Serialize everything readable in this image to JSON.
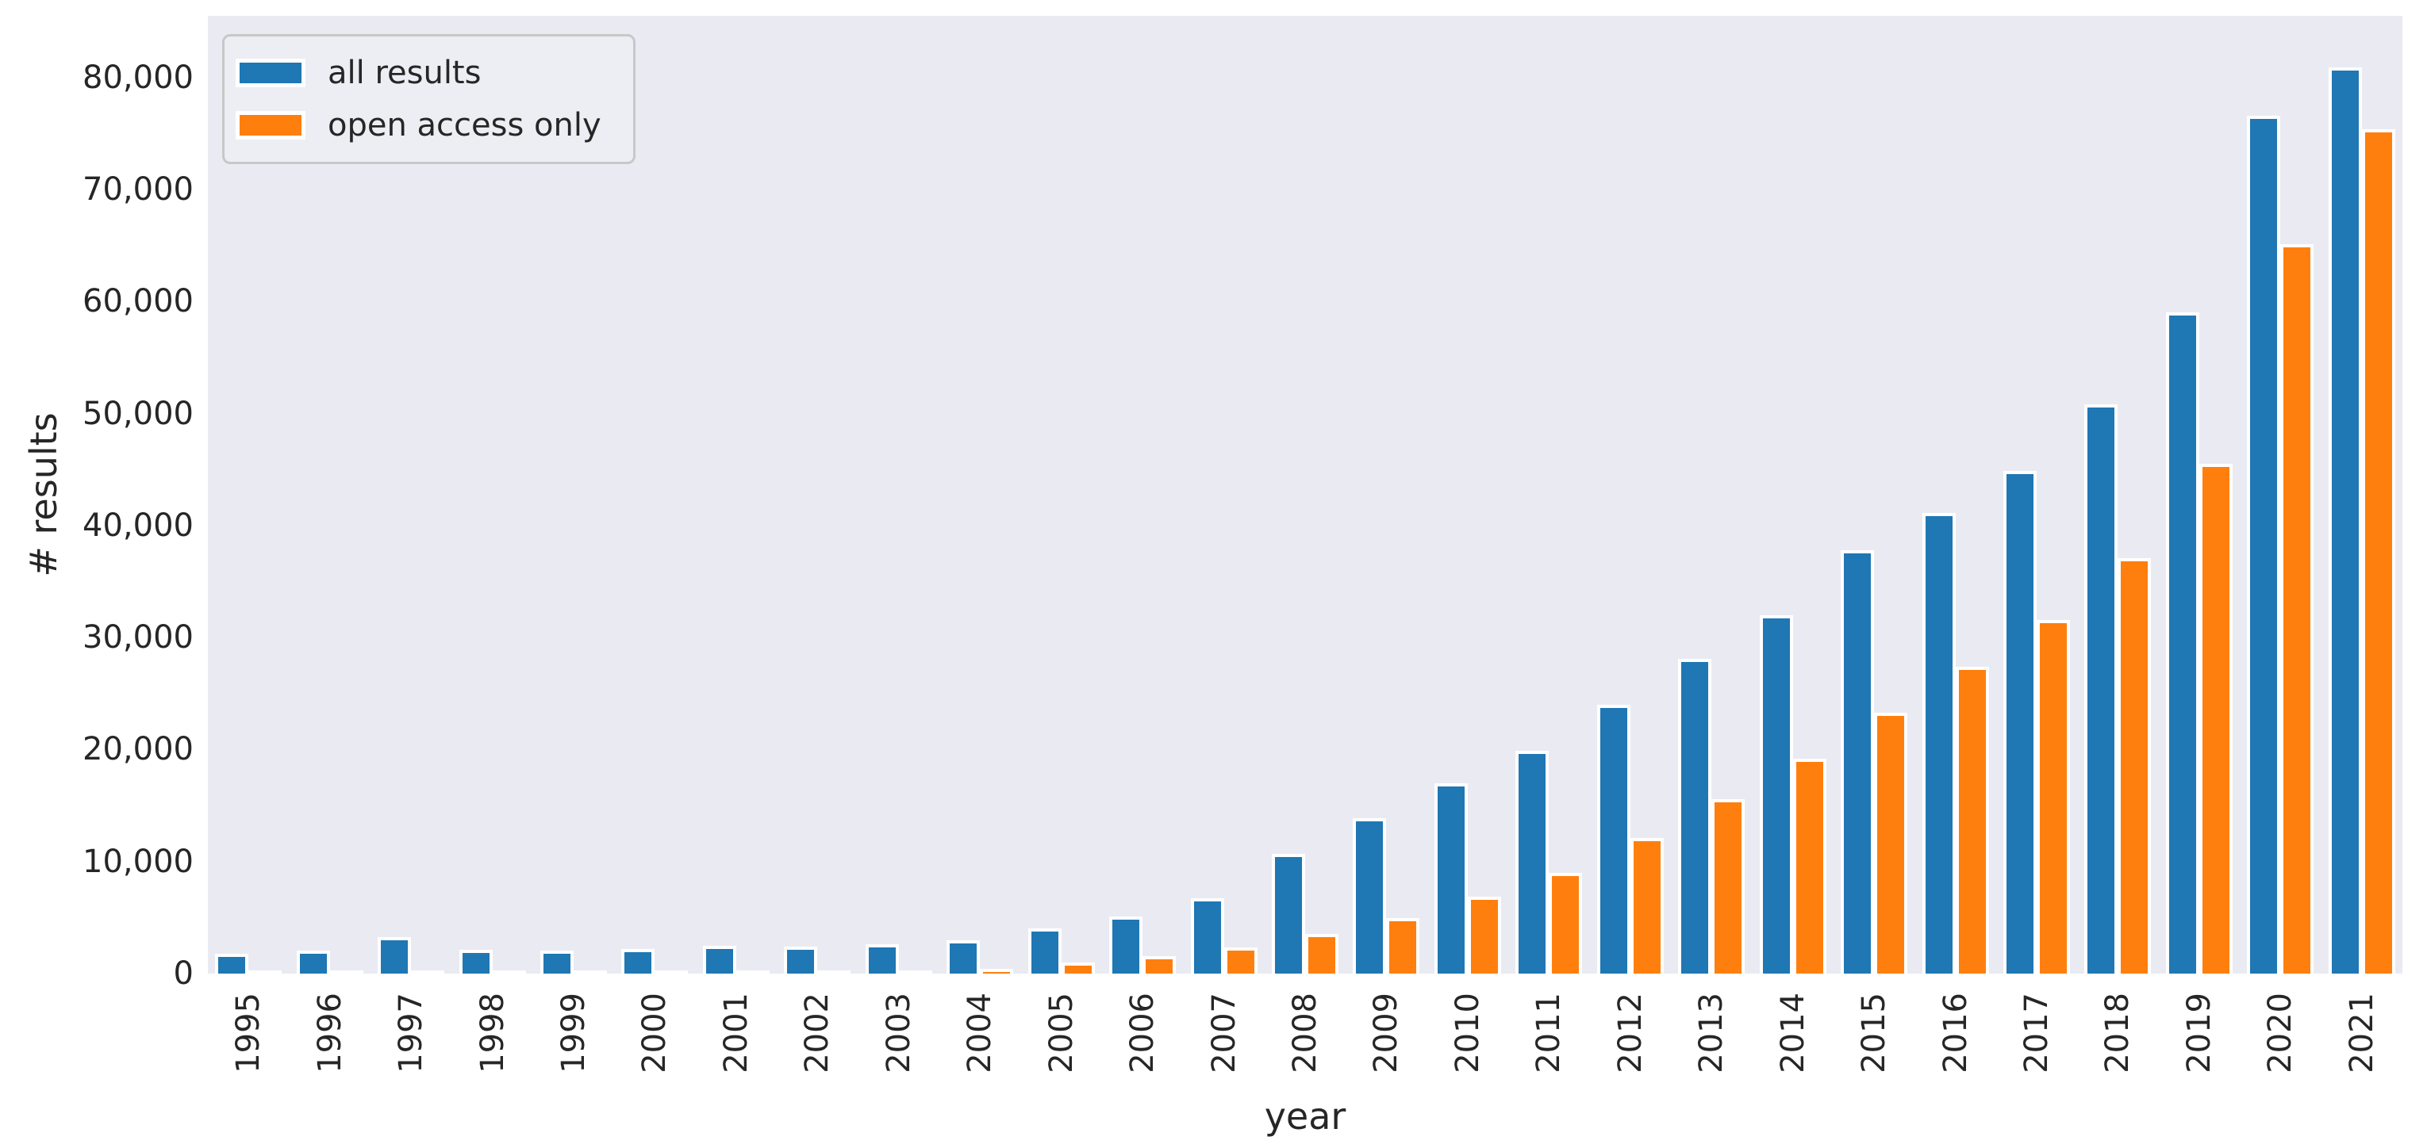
{
  "chart_data": {
    "type": "bar",
    "title": "",
    "xlabel": "year",
    "ylabel": "# results",
    "categories": [
      "1995",
      "1996",
      "1997",
      "1998",
      "1999",
      "2000",
      "2001",
      "2002",
      "2003",
      "2004",
      "2005",
      "2006",
      "2007",
      "2008",
      "2009",
      "2010",
      "2011",
      "2012",
      "2013",
      "2014",
      "2015",
      "2016",
      "2017",
      "2018",
      "2019",
      "2020",
      "2021"
    ],
    "series": [
      {
        "name": "all results",
        "color": "#1f77b4",
        "values": [
          1800,
          2050,
          3250,
          2100,
          2050,
          2200,
          2500,
          2400,
          2600,
          3000,
          4000,
          5100,
          6700,
          10700,
          13900,
          17000,
          19900,
          24000,
          28100,
          32000,
          37800,
          41100,
          44900,
          50800,
          59000,
          76600,
          80900
        ]
      },
      {
        "name": "open access only",
        "color": "#ff7f0e",
        "values": [
          0,
          0,
          0,
          0,
          0,
          0,
          0,
          100,
          300,
          450,
          1000,
          1550,
          2350,
          3550,
          4950,
          6900,
          9000,
          12100,
          15600,
          19200,
          23300,
          27400,
          31600,
          37100,
          45500,
          65100,
          75400
        ]
      }
    ],
    "ylim": [
      0,
      85500
    ],
    "yticks": [
      0,
      10000,
      20000,
      30000,
      40000,
      50000,
      60000,
      70000,
      80000
    ],
    "ytick_labels": [
      "0",
      "10,000",
      "20,000",
      "30,000",
      "40,000",
      "50,000",
      "60,000",
      "70,000",
      "80,000"
    ],
    "grid": false,
    "legend_position": "upper left",
    "plot_background": "#eaeaf2",
    "figure_background": "#ffffff",
    "bar_edge_color": "#ffffff",
    "text_color": "#262626"
  }
}
